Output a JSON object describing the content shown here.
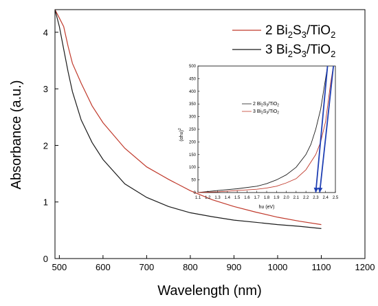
{
  "chart_data": [
    {
      "type": "line",
      "xlabel": "Wavelength (nm)",
      "ylabel": "Absorbance (a.u.)",
      "xlim": [
        490,
        1200
      ],
      "ylim": [
        0,
        4.4
      ],
      "x_ticks": [
        "500",
        "600",
        "700",
        "800",
        "900",
        "1000",
        "1100",
        "1200"
      ],
      "y_ticks": [
        "0",
        "1",
        "2",
        "3",
        "4"
      ],
      "legend": {
        "position": "top-right",
        "entries": [
          {
            "prefix": "2 Bi",
            "sub1": "2",
            "mid": "S",
            "sub2": "3",
            "suffix": "/TiO",
            "sub3": "2",
            "color": "#c0392b"
          },
          {
            "prefix": "3 Bi",
            "sub1": "2",
            "mid": "S",
            "sub2": "3",
            "suffix": "/TiO",
            "sub3": "2",
            "color": "#1a1a1a"
          }
        ]
      },
      "series": [
        {
          "color": "#c0392b",
          "x": [
            490,
            500,
            510,
            520,
            530,
            550,
            575,
            600,
            650,
            700,
            750,
            800,
            850,
            900,
            950,
            1000,
            1050,
            1100
          ],
          "y": [
            4.4,
            4.25,
            4.1,
            3.75,
            3.45,
            3.1,
            2.7,
            2.4,
            1.95,
            1.62,
            1.4,
            1.2,
            1.04,
            0.92,
            0.82,
            0.73,
            0.66,
            0.6
          ]
        },
        {
          "color": "#1a1a1a",
          "x": [
            490,
            500,
            510,
            520,
            530,
            550,
            575,
            600,
            650,
            700,
            750,
            800,
            850,
            900,
            950,
            1000,
            1050,
            1100
          ],
          "y": [
            4.4,
            4.1,
            3.7,
            3.3,
            2.95,
            2.45,
            2.05,
            1.75,
            1.32,
            1.08,
            0.92,
            0.81,
            0.74,
            0.68,
            0.64,
            0.6,
            0.57,
            0.53
          ]
        }
      ]
    },
    {
      "type": "line",
      "xlabel": "hυ (eV)",
      "ylabel": "(αhυ)",
      "ylabel_sup": "2",
      "xlim": [
        1.1,
        2.5
      ],
      "ylim": [
        0,
        500
      ],
      "x_ticks": [
        "1.1",
        "1.2",
        "1.3",
        "1.4",
        "1.5",
        "1.6",
        "1.7",
        "1.8",
        "1.9",
        "2.0",
        "2.1",
        "2.2",
        "2.3",
        "2.4",
        "2.5"
      ],
      "y_ticks": [
        "0",
        "50",
        "100",
        "150",
        "200",
        "250",
        "300",
        "350",
        "400",
        "450",
        "500"
      ],
      "legend": {
        "position": "top-left",
        "entries": [
          {
            "prefix": "2 Bi",
            "sub1": "2",
            "mid": "S",
            "sub2": "3",
            "suffix": "/TiO",
            "sub3": "2",
            "color": "#1a1a1a"
          },
          {
            "prefix": "3 Bi",
            "sub1": "2",
            "mid": "S",
            "sub2": "3",
            "suffix": "/TiO",
            "sub3": "2",
            "color": "#c0392b"
          }
        ]
      },
      "series": [
        {
          "color": "#1a1a1a",
          "x": [
            1.1,
            1.3,
            1.5,
            1.7,
            1.8,
            1.9,
            2.0,
            2.1,
            2.2,
            2.25,
            2.3,
            2.35,
            2.4,
            2.42
          ],
          "y": [
            0,
            8,
            15,
            25,
            35,
            50,
            70,
            100,
            150,
            190,
            250,
            330,
            450,
            500
          ]
        },
        {
          "color": "#c0392b",
          "x": [
            1.1,
            1.3,
            1.5,
            1.7,
            1.8,
            1.9,
            2.0,
            2.1,
            2.2,
            2.3,
            2.35,
            2.4,
            2.45,
            2.48
          ],
          "y": [
            0,
            3,
            8,
            13,
            18,
            25,
            38,
            55,
            90,
            150,
            200,
            280,
            430,
            500
          ]
        }
      ],
      "tangent_lines": [
        {
          "color": "#1f3fb3",
          "from": [
            2.42,
            500
          ],
          "to": [
            2.3,
            0
          ]
        },
        {
          "color": "#1f3fb3",
          "from": [
            2.48,
            500
          ],
          "to": [
            2.34,
            0
          ]
        }
      ]
    }
  ]
}
